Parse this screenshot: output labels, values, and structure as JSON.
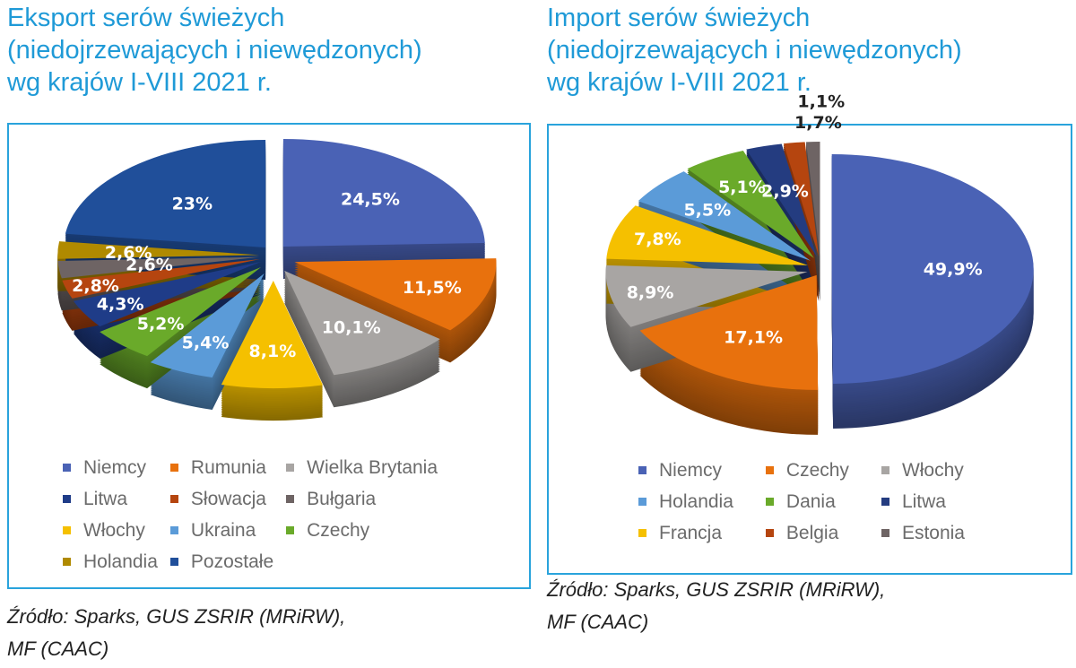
{
  "chart_data": [
    {
      "type": "pie",
      "title": "Eksport serów świeżych (niedojrzewających i niewędzonych) wg krajów I-VIII 2021 r.",
      "categories": [
        "Niemcy",
        "Rumunia",
        "Wielka Brytania",
        "Włochy",
        "Ukraina",
        "Czechy",
        "Litwa",
        "Słowacja",
        "Bułgaria",
        "Holandia",
        "Pozostałe"
      ],
      "values": [
        24.5,
        11.5,
        10.1,
        8.1,
        5.4,
        5.2,
        4.3,
        2.8,
        2.6,
        2.6,
        23
      ],
      "labels": [
        "24,5%",
        "11,5%",
        "10,1%",
        "8,1%",
        "5,4%",
        "5,2%",
        "4,3%",
        "2,8%",
        "2,6%",
        "2,6%",
        "23%"
      ],
      "colors": [
        "#4a62b5",
        "#e8710d",
        "#a8a5a3",
        "#f5c000",
        "#5b9bd8",
        "#6aaa2a",
        "#1f3c88",
        "#b5450f",
        "#6e6464",
        "#b08a00",
        "#204f9a"
      ],
      "legend": [
        "Niemcy",
        "Rumunia",
        "Wielka Brytania",
        "Litwa",
        "Słowacja",
        "Bułgaria",
        "Włochy",
        "Ukraina",
        "Czechy",
        "Holandia",
        "Pozostałe"
      ],
      "legend_colors": [
        "#4a62b5",
        "#e8710d",
        "#a8a5a3",
        "#1f3c88",
        "#b5450f",
        "#6e6464",
        "#f5c000",
        "#5b9bd8",
        "#6aaa2a",
        "#b08a00",
        "#204f9a"
      ],
      "legend_placement": "bottom",
      "style": "3d-exploded",
      "source": "Źródło: Sparks, GUS ZSRIR (MRiRW), MF (CAAC)"
    },
    {
      "type": "pie",
      "title": "Import serów świeżych (niedojrzewających i niewędzonych) wg krajów I-VIII 2021 r.",
      "categories": [
        "Niemcy",
        "Czechy",
        "Włochy",
        "Francja",
        "Holandia",
        "Dania",
        "Litwa",
        "Belgia",
        "Estonia"
      ],
      "values": [
        49.9,
        17.1,
        8.9,
        7.8,
        5.5,
        5.1,
        2.9,
        1.7,
        1.1
      ],
      "labels": [
        "49,9%",
        "17,1%",
        "8,9%",
        "7,8%",
        "5,5%",
        "5,1%",
        "2,9%",
        "1,7%",
        "1,1%"
      ],
      "colors": [
        "#4a62b5",
        "#e8710d",
        "#a8a5a3",
        "#f5c000",
        "#5b9bd8",
        "#6aaa2a",
        "#243c80",
        "#b5450f",
        "#6e6464"
      ],
      "legend": [
        "Niemcy",
        "Czechy",
        "Włochy",
        "Holandia",
        "Dania",
        "Litwa",
        "Francja",
        "Belgia",
        "Estonia"
      ],
      "legend_colors": [
        "#4a62b5",
        "#e8710d",
        "#a8a5a3",
        "#5b9bd8",
        "#6aaa2a",
        "#243c80",
        "#f5c000",
        "#b5450f",
        "#6e6464"
      ],
      "legend_placement": "bottom",
      "style": "3d-exploded",
      "source": "Źródło: Sparks, GUS ZSRIR (MRiRW), MF (CAAC)"
    }
  ]
}
